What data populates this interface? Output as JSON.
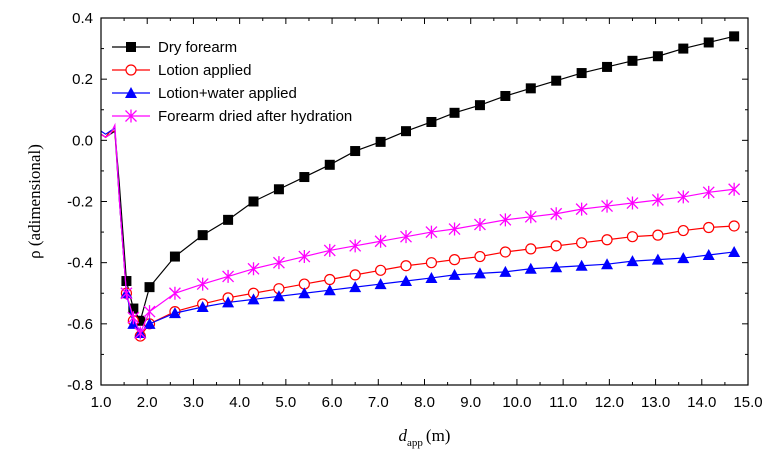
{
  "chart_data": {
    "type": "line",
    "xlabel": "d",
    "xlabel_sub": "app",
    "xlabel_unit": "(m)",
    "ylabel": "ρ (adimensional)",
    "xlim": [
      1.0,
      15.0
    ],
    "ylim": [
      -0.8,
      0.4
    ],
    "x_ticks": [
      "1.0",
      "2.0",
      "3.0",
      "4.0",
      "5.0",
      "6.0",
      "7.0",
      "8.0",
      "9.0",
      "10.0",
      "11.0",
      "12.0",
      "13.0",
      "14.0",
      "15.0"
    ],
    "y_ticks": [
      "0.4",
      "0.2",
      "0.0",
      "-0.2",
      "-0.4",
      "-0.6",
      "-0.8"
    ],
    "grid": false,
    "legend_position": "top-left",
    "series": [
      {
        "name": "Dry forearm",
        "color": "#000000",
        "marker": "square",
        "x": [
          1.0,
          1.1,
          1.2,
          1.3,
          1.4,
          1.55,
          1.7,
          1.85,
          2.05,
          2.6,
          3.2,
          3.75,
          4.3,
          4.85,
          5.4,
          5.95,
          6.5,
          7.05,
          7.6,
          8.15,
          8.65,
          9.2,
          9.75,
          10.3,
          10.85,
          11.4,
          11.95,
          12.5,
          13.05,
          13.6,
          14.15,
          14.7
        ],
        "y": [
          0.02,
          0.01,
          0.02,
          0.03,
          -0.15,
          -0.46,
          -0.55,
          -0.59,
          -0.48,
          -0.38,
          -0.31,
          -0.26,
          -0.2,
          -0.16,
          -0.12,
          -0.08,
          -0.035,
          -0.005,
          0.03,
          0.06,
          0.09,
          0.115,
          0.145,
          0.17,
          0.195,
          0.22,
          0.24,
          0.26,
          0.275,
          0.3,
          0.32,
          0.34
        ]
      },
      {
        "name": "Lotion applied",
        "color": "#ff0000",
        "marker": "circle",
        "x": [
          1.0,
          1.1,
          1.2,
          1.3,
          1.4,
          1.55,
          1.7,
          1.85,
          2.05,
          2.6,
          3.2,
          3.75,
          4.3,
          4.85,
          5.4,
          5.95,
          6.5,
          7.05,
          7.6,
          8.15,
          8.65,
          9.2,
          9.75,
          10.3,
          10.85,
          11.4,
          11.95,
          12.5,
          13.05,
          13.6,
          14.15,
          14.7
        ],
        "y": [
          0.02,
          0.01,
          0.03,
          0.03,
          -0.2,
          -0.5,
          -0.59,
          -0.64,
          -0.6,
          -0.56,
          -0.535,
          -0.515,
          -0.5,
          -0.485,
          -0.47,
          -0.455,
          -0.44,
          -0.425,
          -0.41,
          -0.4,
          -0.39,
          -0.38,
          -0.365,
          -0.355,
          -0.345,
          -0.335,
          -0.325,
          -0.315,
          -0.31,
          -0.295,
          -0.285,
          -0.28
        ]
      },
      {
        "name": "Lotion+water applied",
        "color": "#0000ff",
        "marker": "triangle",
        "x": [
          1.0,
          1.1,
          1.2,
          1.3,
          1.4,
          1.55,
          1.7,
          1.85,
          2.05,
          2.6,
          3.2,
          3.75,
          4.3,
          4.85,
          5.4,
          5.95,
          6.5,
          7.05,
          7.6,
          8.15,
          8.65,
          9.2,
          9.75,
          10.3,
          10.85,
          11.4,
          11.95,
          12.5,
          13.05,
          13.6,
          14.15,
          14.7
        ],
        "y": [
          0.03,
          0.02,
          0.03,
          0.04,
          -0.2,
          -0.5,
          -0.6,
          -0.63,
          -0.6,
          -0.565,
          -0.545,
          -0.53,
          -0.52,
          -0.51,
          -0.5,
          -0.49,
          -0.48,
          -0.47,
          -0.46,
          -0.45,
          -0.44,
          -0.435,
          -0.43,
          -0.42,
          -0.415,
          -0.41,
          -0.405,
          -0.395,
          -0.39,
          -0.385,
          -0.375,
          -0.365
        ]
      },
      {
        "name": "Forearm dried after hydration",
        "color": "#ff00ff",
        "marker": "asterisk",
        "x": [
          1.0,
          1.1,
          1.2,
          1.3,
          1.4,
          1.55,
          1.7,
          1.85,
          2.05,
          2.6,
          3.2,
          3.75,
          4.3,
          4.85,
          5.4,
          5.95,
          6.5,
          7.05,
          7.6,
          8.15,
          8.65,
          9.2,
          9.75,
          10.3,
          10.85,
          11.4,
          11.95,
          12.5,
          13.05,
          13.6,
          14.15,
          14.7
        ],
        "y": [
          0.02,
          0.01,
          0.02,
          0.05,
          -0.2,
          -0.5,
          -0.58,
          -0.63,
          -0.56,
          -0.5,
          -0.47,
          -0.445,
          -0.42,
          -0.4,
          -0.38,
          -0.36,
          -0.345,
          -0.33,
          -0.315,
          -0.3,
          -0.29,
          -0.275,
          -0.26,
          -0.25,
          -0.24,
          -0.225,
          -0.215,
          -0.205,
          -0.195,
          -0.185,
          -0.17,
          -0.16
        ]
      }
    ]
  }
}
